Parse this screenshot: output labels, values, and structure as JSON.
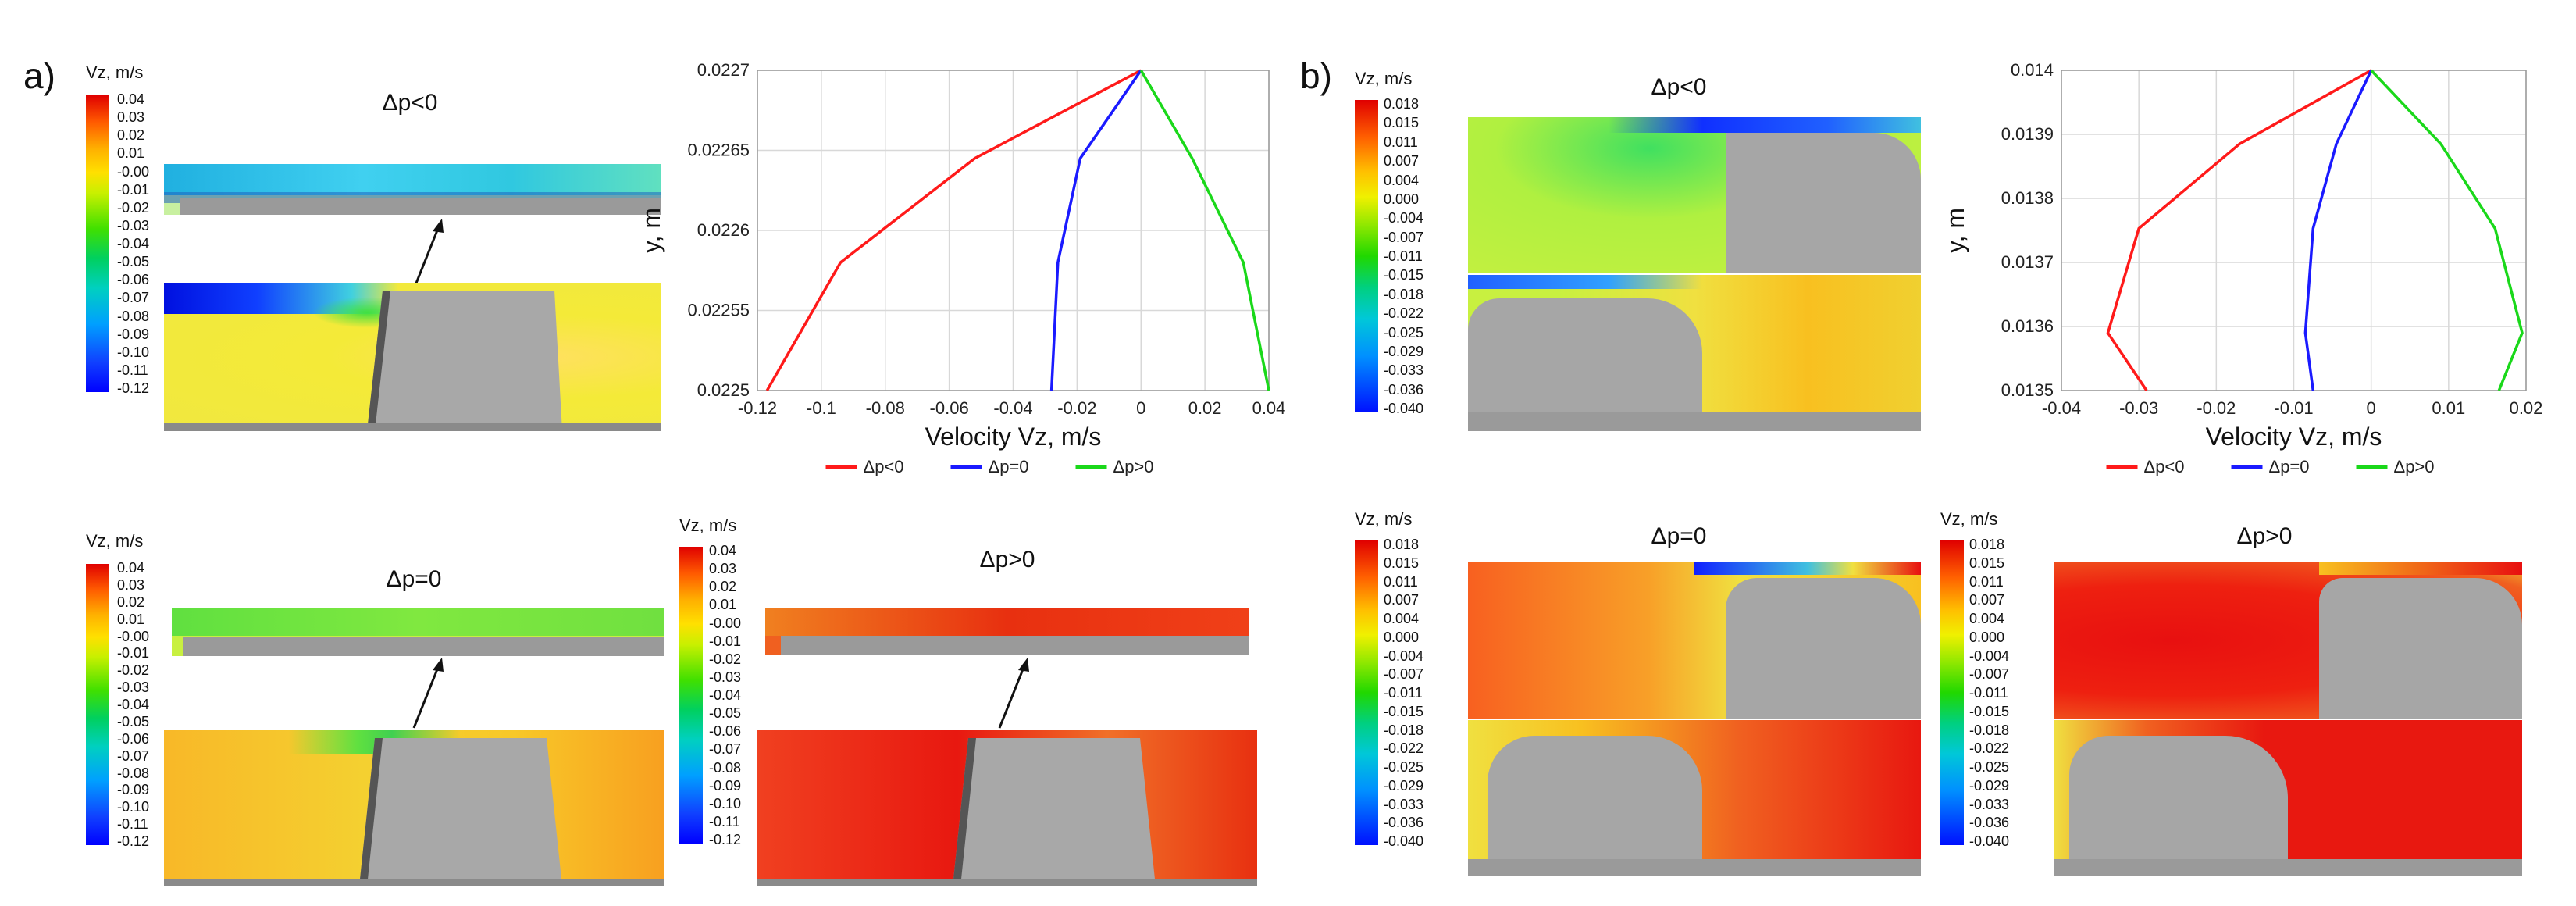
{
  "figure": {
    "panel_a": {
      "label": "a)",
      "colorbar": {
        "title": "Vz, m/s",
        "ticks": [
          "0.04",
          "0.03",
          "0.02",
          "0.01",
          "-0.00",
          "-0.01",
          "-0.02",
          "-0.03",
          "-0.04",
          "-0.05",
          "-0.06",
          "-0.07",
          "-0.08",
          "-0.09",
          "-0.10",
          "-0.11",
          "-0.12"
        ]
      },
      "sims": [
        {
          "title": "Δp<0"
        },
        {
          "title": "Δp=0"
        },
        {
          "title": "Δp>0"
        }
      ]
    },
    "panel_b": {
      "label": "b)",
      "colorbar": {
        "title": "Vz, m/s",
        "ticks": [
          "0.018",
          "0.015",
          "0.011",
          "0.007",
          "0.004",
          "0.000",
          "-0.004",
          "-0.007",
          "-0.011",
          "-0.015",
          "-0.018",
          "-0.022",
          "-0.025",
          "-0.029",
          "-0.033",
          "-0.036",
          "-0.040"
        ]
      },
      "sims": [
        {
          "title": "Δp<0"
        },
        {
          "title": "Δp=0"
        },
        {
          "title": "Δp>0"
        }
      ]
    }
  },
  "chart_data": [
    {
      "type": "line",
      "xlabel": "Velocity Vz, m/s",
      "ylabel": "y, m",
      "xlim": [
        -0.12,
        0.04
      ],
      "ylim": [
        0.0225,
        0.0227
      ],
      "xticks": [
        -0.12,
        -0.1,
        -0.08,
        -0.06,
        -0.04,
        -0.02,
        0,
        0.02,
        0.04
      ],
      "xtick_labels": [
        "-0.12",
        "-0.1",
        "-0.08",
        "-0.06",
        "-0.04",
        "-0.02",
        "0",
        "0.02",
        "0.04"
      ],
      "yticks": [
        0.0225,
        0.02255,
        0.0226,
        0.02265,
        0.0227
      ],
      "ytick_labels": [
        "0.0225",
        "0.02255",
        "0.0226",
        "0.02265",
        "0.0227"
      ],
      "grid": true,
      "legend": "bottom",
      "series": [
        {
          "name": "Δp<0",
          "color": "#ff1a1a",
          "x": [
            -0.117,
            -0.094,
            -0.052,
            0.0
          ],
          "y": [
            0.0225,
            0.02258,
            0.022645,
            0.0227
          ]
        },
        {
          "name": "Δp=0",
          "color": "#1a1aff",
          "x": [
            -0.028,
            -0.026,
            -0.019,
            0.0
          ],
          "y": [
            0.0225,
            0.02258,
            0.022645,
            0.0227
          ]
        },
        {
          "name": "Δp>0",
          "color": "#1ad81a",
          "x": [
            0.04,
            0.032,
            0.016,
            0.0
          ],
          "y": [
            0.0225,
            0.02258,
            0.022645,
            0.0227
          ]
        }
      ]
    },
    {
      "type": "line",
      "xlabel": "Velocity Vz, m/s",
      "ylabel": "y, m",
      "xlim": [
        -0.04,
        0.02
      ],
      "ylim": [
        0.0135,
        0.014
      ],
      "xticks": [
        -0.04,
        -0.03,
        -0.02,
        -0.01,
        0,
        0.01,
        0.02
      ],
      "xtick_labels": [
        "-0.04",
        "-0.03",
        "-0.02",
        "-0.01",
        "0",
        "0.01",
        "0.02"
      ],
      "yticks": [
        0.0135,
        0.0136,
        0.0137,
        0.0138,
        0.0139,
        0.014
      ],
      "ytick_labels": [
        "0.0135",
        "0.0136",
        "0.0137",
        "0.0138",
        "0.0139",
        "0.014"
      ],
      "grid": true,
      "legend": "bottom",
      "series": [
        {
          "name": "Δp<0",
          "color": "#ff1a1a",
          "x": [
            -0.029,
            -0.034,
            -0.03,
            -0.017,
            0.0
          ],
          "y": [
            0.0135,
            0.01359,
            0.013753,
            0.013885,
            0.014
          ]
        },
        {
          "name": "Δp=0",
          "color": "#1a1aff",
          "x": [
            -0.0075,
            -0.0085,
            -0.0075,
            -0.0045,
            0.0
          ],
          "y": [
            0.0135,
            0.01359,
            0.013753,
            0.013885,
            0.014
          ]
        },
        {
          "name": "Δp>0",
          "color": "#1ad81a",
          "x": [
            0.0165,
            0.0195,
            0.016,
            0.009,
            0.0
          ],
          "y": [
            0.0135,
            0.01359,
            0.013753,
            0.013885,
            0.014
          ]
        }
      ]
    }
  ]
}
